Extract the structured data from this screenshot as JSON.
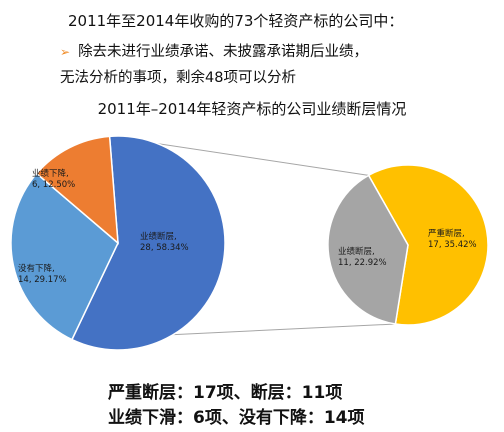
{
  "heading": "2011年至2014年收购的73个轻资产标的公司中：",
  "bullets": [
    "除去未进行业绩承诺、未披露承诺期后业绩，",
    "无法分析的事项，剩余48项可以分析"
  ],
  "chart_data": [
    {
      "type": "pie",
      "title": "2011年–2014年轻资产标的公司业绩断层情况",
      "slices": [
        {
          "label": "业绩断层",
          "value": 28,
          "percent": "58.34%",
          "color": "#4472c4"
        },
        {
          "label": "没有下降",
          "value": 14,
          "percent": "29.17%",
          "color": "#5b9bd5"
        },
        {
          "label": "业绩下降",
          "value": 6,
          "percent": "12.50%",
          "color": "#ed7d31"
        }
      ]
    },
    {
      "type": "pie",
      "title": "",
      "slices": [
        {
          "label": "严重断层",
          "value": 17,
          "percent": "35.42%",
          "color": "#ffc000"
        },
        {
          "label": "业绩断层",
          "value": 11,
          "percent": "22.92%",
          "color": "#a5a5a5"
        }
      ]
    }
  ],
  "summary": [
    "严重断层：17项、断层：11项",
    "业绩下滑：6项、没有下降：14项"
  ]
}
